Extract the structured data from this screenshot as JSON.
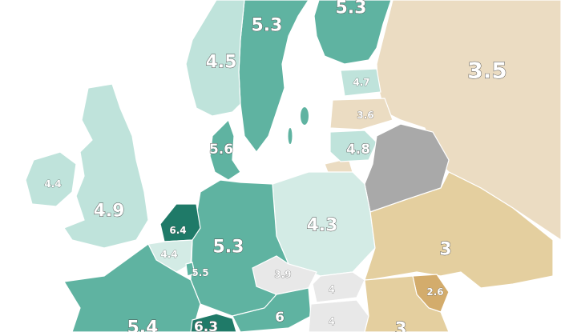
{
  "map": {
    "colors": {
      "dark_teal": "#1f7a68",
      "teal": "#5fb3a1",
      "mid_teal": "#8ccbbd",
      "light_teal": "#bfe3db",
      "pale_teal": "#d3ebe5",
      "beige": "#ebdcc2",
      "tan": "#e4cf9f",
      "brown": "#d3ac6c",
      "grey": "#a9a9a9",
      "light_grey": "#e8e8e8",
      "sea": "#ffffff"
    },
    "regions": [
      {
        "id": "russia",
        "value": "3.5"
      },
      {
        "id": "finland",
        "value": "5.3"
      },
      {
        "id": "sweden",
        "value": "5.3"
      },
      {
        "id": "norway",
        "value": "4.5"
      },
      {
        "id": "estonia",
        "value": "4.7"
      },
      {
        "id": "latvia",
        "value": "3.6"
      },
      {
        "id": "lithuania",
        "value": "4.8"
      },
      {
        "id": "belarus",
        "value": ""
      },
      {
        "id": "denmark",
        "value": "5.6"
      },
      {
        "id": "ireland",
        "value": "4.4"
      },
      {
        "id": "uk",
        "value": "4.9"
      },
      {
        "id": "netherlands",
        "value": "6.4"
      },
      {
        "id": "belgium",
        "value": "4.4"
      },
      {
        "id": "luxembourg",
        "value": "5.5"
      },
      {
        "id": "germany",
        "value": "5.3"
      },
      {
        "id": "poland",
        "value": "4.3"
      },
      {
        "id": "czechia",
        "value": "3.9"
      },
      {
        "id": "slovakia",
        "value": "4"
      },
      {
        "id": "hungary",
        "value": "4"
      },
      {
        "id": "austria",
        "value": "6"
      },
      {
        "id": "switzerland",
        "value": "6.3"
      },
      {
        "id": "france",
        "value": "5.4"
      },
      {
        "id": "ukraine",
        "value": "3"
      },
      {
        "id": "moldova",
        "value": "2.6"
      },
      {
        "id": "romania",
        "value": "3"
      }
    ]
  }
}
